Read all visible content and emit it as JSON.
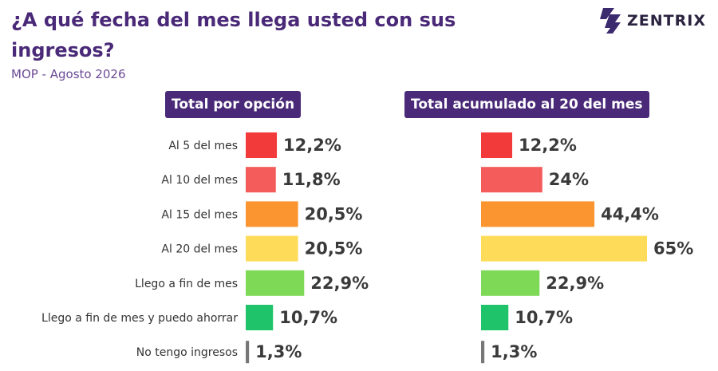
{
  "header": {
    "title": "¿A qué fecha del mes llega usted con sus ingresos?",
    "subtitle": "MOP - Agosto 2026",
    "logo_text": "ZENTRIX"
  },
  "chart_data": [
    {
      "type": "bar",
      "orientation": "horizontal",
      "title": "Total por opción",
      "categories": [
        "Al 5 del mes",
        "Al 10 del mes",
        "Al 15 del mes",
        "Al 20 del mes",
        "Llego a fin de mes",
        "Llego a fin de mes y puedo ahorrar",
        "No tengo ingresos"
      ],
      "values": [
        12.2,
        11.8,
        20.5,
        20.5,
        22.9,
        10.7,
        1.3
      ],
      "labels": [
        "12,2%",
        "11,8%",
        "20,5%",
        "20,5%",
        "22,9%",
        "10,7%",
        "1,3%"
      ],
      "colors": [
        "#f23a3a",
        "#f45b5b",
        "#fb9530",
        "#fedc5a",
        "#7ed957",
        "#1fc46a",
        "#777777"
      ]
    },
    {
      "type": "bar",
      "orientation": "horizontal",
      "title": "Total acumulado al 20 del mes",
      "categories": [
        "Al 5 del mes",
        "Al 10 del mes",
        "Al 15 del mes",
        "Al 20 del mes",
        "Llego a fin de mes",
        "Llego a fin de mes y puedo ahorrar",
        "No tengo ingresos"
      ],
      "values": [
        12.2,
        24,
        44.4,
        65,
        22.9,
        10.7,
        1.3
      ],
      "labels": [
        "12,2%",
        "24%",
        "44,4%",
        "65%",
        "22,9%",
        "10,7%",
        "1,3%"
      ],
      "colors": [
        "#f23a3a",
        "#f45b5b",
        "#fb9530",
        "#fedc5a",
        "#7ed957",
        "#1fc46a",
        "#777777"
      ]
    }
  ]
}
